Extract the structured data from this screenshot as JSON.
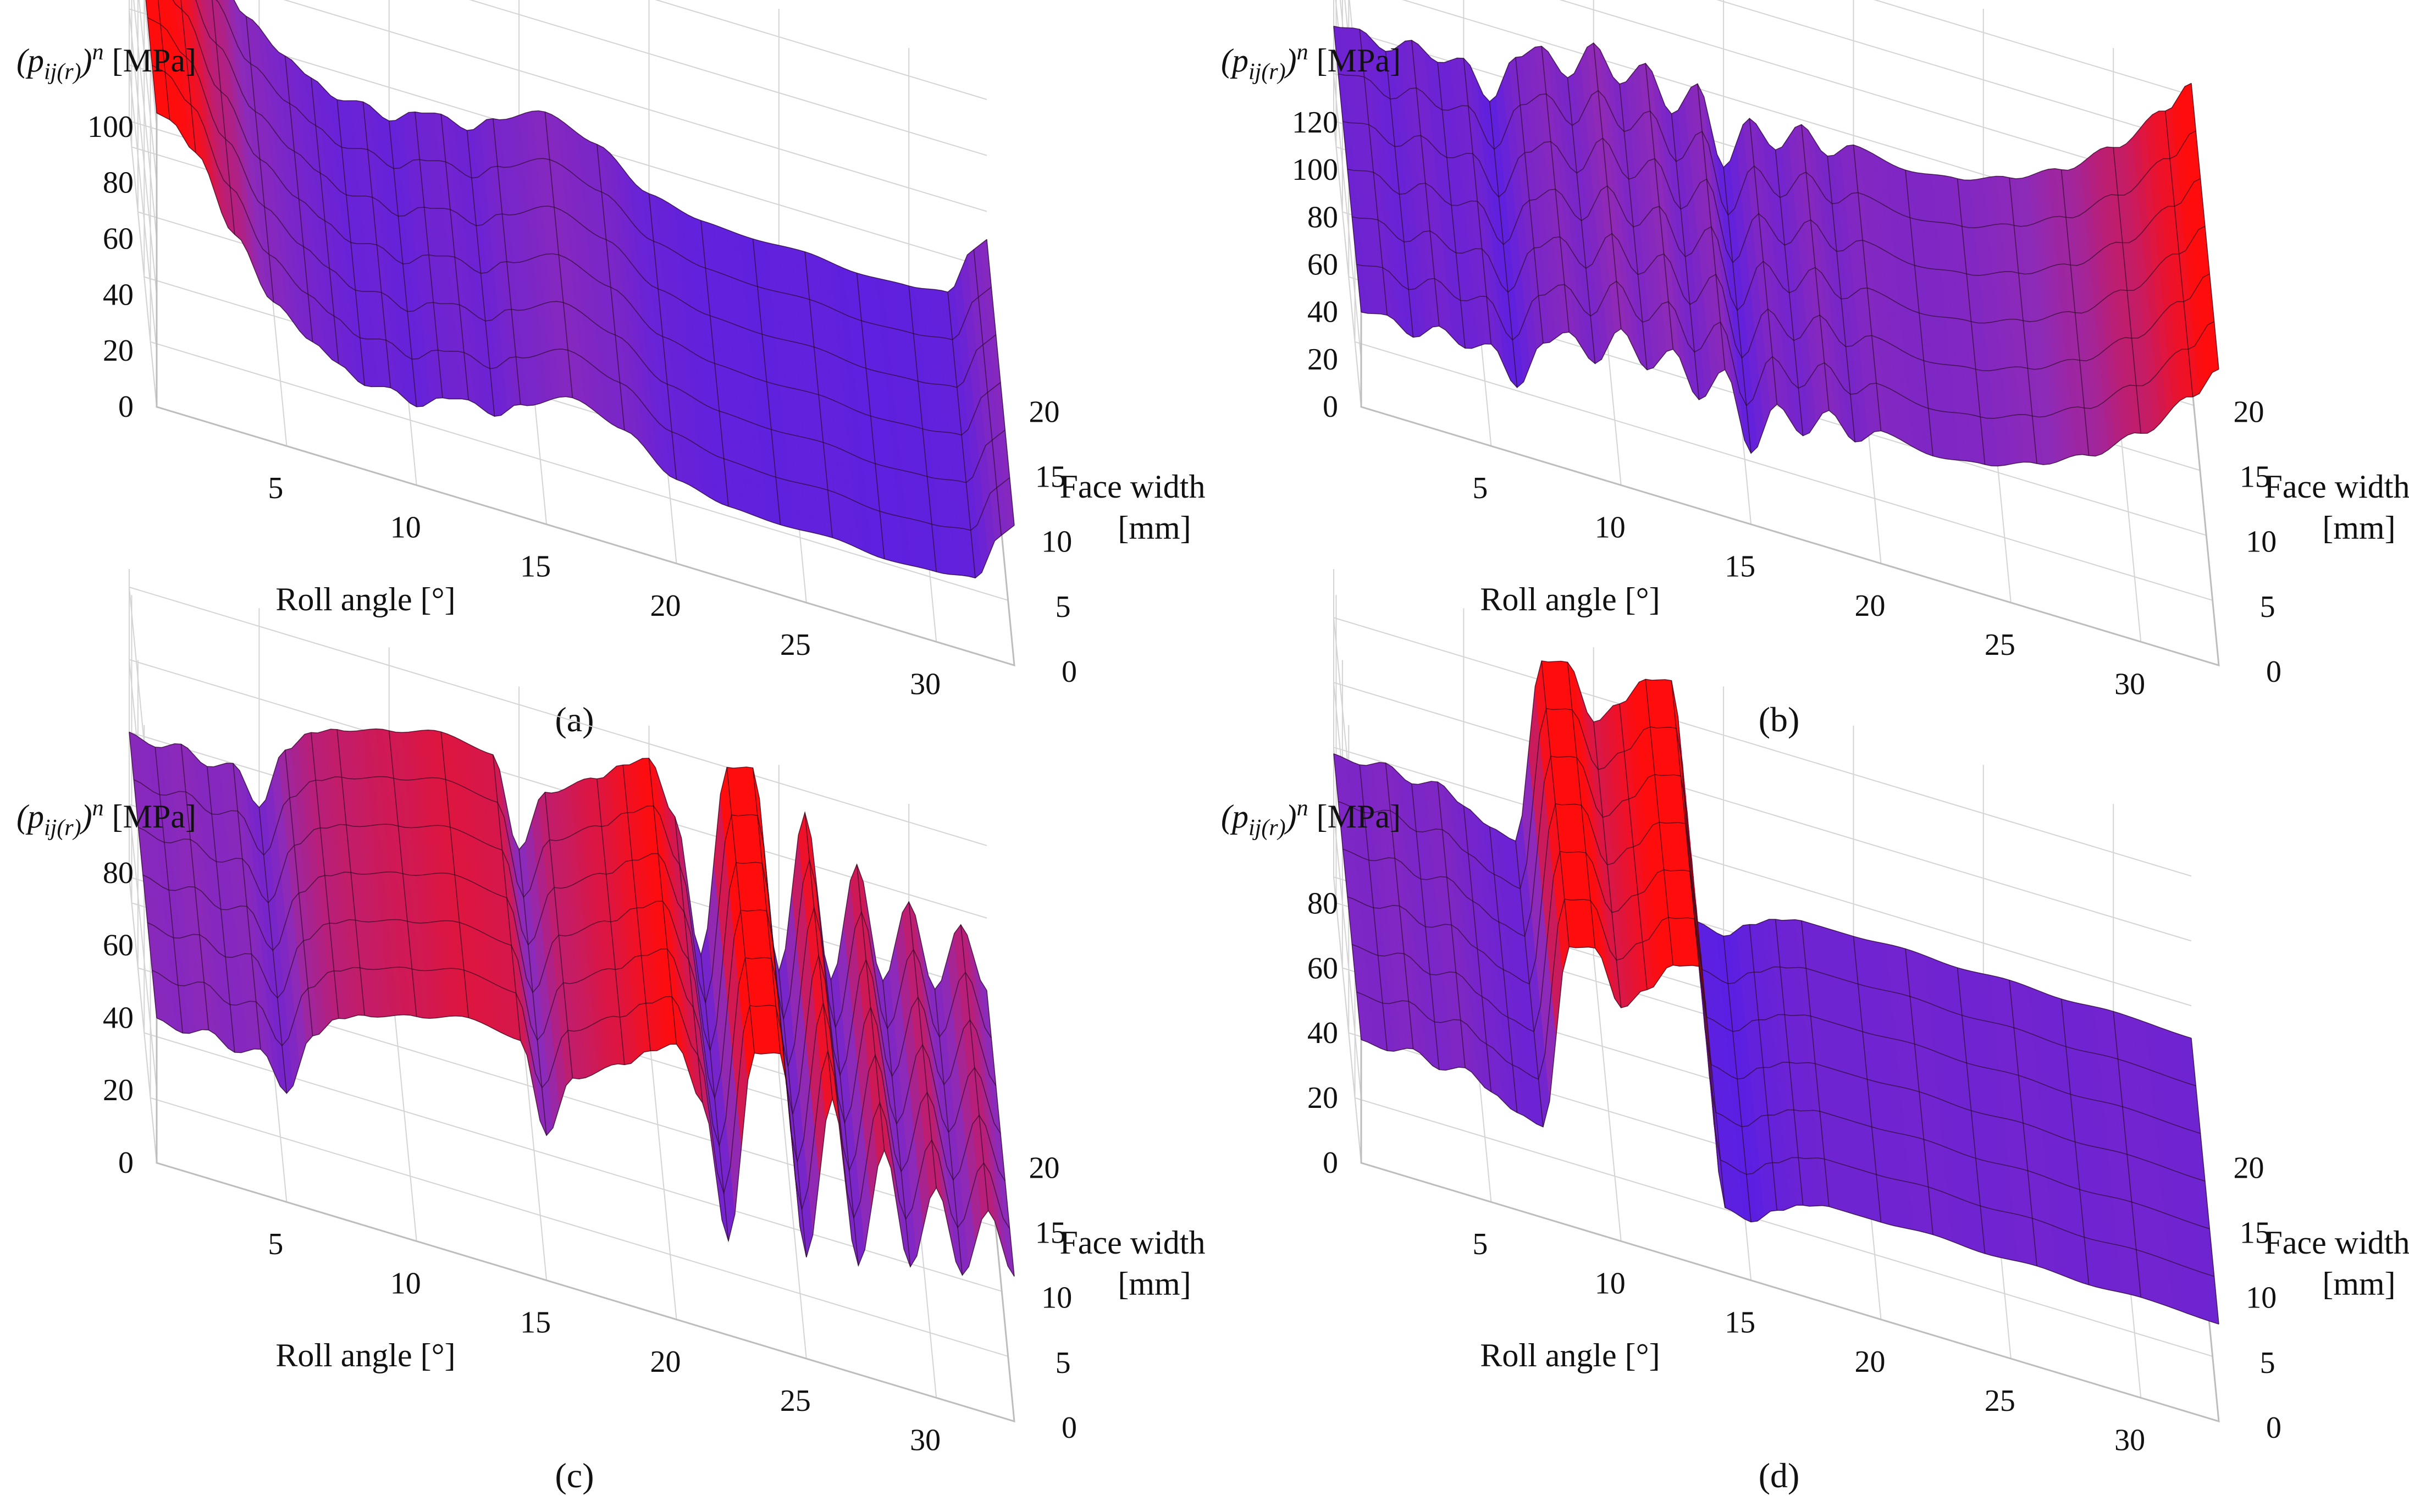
{
  "chart_data": [
    {
      "type": "surface",
      "caption": "(a)",
      "zlabel_parts": {
        "open": "(p",
        "sub": "ij(r)",
        "close": ")",
        "sup": "n",
        "unit": " [MPa]"
      },
      "xlabel": "Roll angle [°]",
      "ylabel_line1": "Face width",
      "ylabel_line2": "[mm]",
      "xticks": [
        "5",
        "10",
        "15",
        "20",
        "25",
        "30"
      ],
      "yticks": [
        "0",
        "5",
        "10",
        "15",
        "20"
      ],
      "zticks": [
        "0",
        "20",
        "40",
        "60",
        "80",
        "100"
      ],
      "xlim": [
        0,
        33
      ],
      "ylim": [
        0,
        22
      ],
      "zlim": [
        0,
        110
      ],
      "profile_x": [
        0,
        0.5,
        1.5,
        3,
        4.5,
        6,
        7,
        8,
        9,
        10,
        11,
        12,
        13,
        14,
        16,
        18,
        20,
        22,
        24,
        26,
        28,
        30,
        31.5,
        32.5,
        33
      ],
      "profile_z": [
        105,
        104,
        95,
        70,
        50,
        40,
        35,
        30,
        32,
        28,
        34,
        36,
        33,
        40,
        48,
        42,
        30,
        26,
        25,
        26,
        24,
        25,
        27,
        45,
        50
      ]
    },
    {
      "type": "surface",
      "caption": "(b)",
      "zlabel_parts": {
        "open": "(p",
        "sub": "ij(r)",
        "close": ")",
        "sup": "n",
        "unit": " [MPa]"
      },
      "xlabel": "Roll angle [°]",
      "ylabel_line1": "Face width",
      "ylabel_line2": "[mm]",
      "xticks": [
        "5",
        "10",
        "15",
        "20",
        "25",
        "30"
      ],
      "yticks": [
        "0",
        "5",
        "10",
        "15",
        "20"
      ],
      "zticks": [
        "0",
        "20",
        "40",
        "60",
        "80",
        "100",
        "120"
      ],
      "xlim": [
        0,
        33
      ],
      "ylim": [
        0,
        22
      ],
      "zlim": [
        0,
        130
      ],
      "profile_x": [
        0,
        1,
        2,
        3,
        4,
        5,
        6,
        7,
        8,
        9,
        10,
        11,
        12,
        13,
        14,
        15,
        16,
        17,
        18,
        19,
        20,
        22,
        24,
        26,
        28,
        30,
        32,
        33
      ],
      "profile_z": [
        40,
        42,
        36,
        44,
        38,
        43,
        28,
        50,
        58,
        48,
        66,
        52,
        64,
        46,
        62,
        30,
        54,
        44,
        58,
        48,
        56,
        52,
        55,
        62,
        72,
        88,
        110,
        125
      ]
    },
    {
      "type": "surface",
      "caption": "(c)",
      "zlabel_parts": {
        "open": "(p",
        "sub": "ij(r)",
        "close": ")",
        "sup": "n",
        "unit": " [MPa]"
      },
      "xlabel": "Roll angle [°]",
      "ylabel_line1": "Face width",
      "ylabel_line2": "[mm]",
      "xticks": [
        "5",
        "10",
        "15",
        "20",
        "25",
        "30"
      ],
      "yticks": [
        "0",
        "5",
        "10",
        "15",
        "20"
      ],
      "zticks": [
        "0",
        "20",
        "40",
        "60",
        "80"
      ],
      "xlim": [
        0,
        33
      ],
      "ylim": [
        0,
        22
      ],
      "zlim": [
        0,
        85
      ],
      "profile_x": [
        0,
        1,
        2,
        3,
        4,
        5,
        6,
        7,
        8,
        10,
        12,
        14,
        15,
        16,
        18,
        19,
        20,
        21,
        22,
        23,
        24,
        25,
        26,
        27,
        28,
        29,
        30,
        31,
        32,
        33
      ],
      "profile_z": [
        40,
        38,
        41,
        37,
        40,
        30,
        48,
        55,
        58,
        62,
        66,
        64,
        40,
        58,
        66,
        72,
        76,
        62,
        26,
        80,
        82,
        28,
        74,
        30,
        64,
        34,
        58,
        36,
        56,
        40
      ]
    },
    {
      "type": "surface",
      "caption": "(d)",
      "zlabel_parts": {
        "open": "(p",
        "sub": "ij(r)",
        "close": ")",
        "sup": "n",
        "unit": " [MPa]"
      },
      "xlabel": "Roll angle [°]",
      "ylabel_line1": "Face width",
      "ylabel_line2": "[mm]",
      "xticks": [
        "5",
        "10",
        "15",
        "20",
        "25",
        "30"
      ],
      "yticks": [
        "0",
        "5",
        "10",
        "15",
        "20"
      ],
      "zticks": [
        "0",
        "20",
        "40",
        "60",
        "80"
      ],
      "xlim": [
        0,
        33
      ],
      "ylim": [
        0,
        22
      ],
      "zlim": [
        0,
        95
      ],
      "profile_x": [
        0,
        1,
        2,
        3,
        4,
        5,
        6,
        7,
        8,
        9,
        10,
        11,
        12,
        13,
        14,
        15,
        16,
        17,
        18,
        20,
        22,
        24,
        26,
        28,
        30,
        33
      ],
      "profile_z": [
        38,
        37,
        40,
        36,
        39,
        34,
        30,
        28,
        86,
        88,
        72,
        80,
        90,
        92,
        20,
        18,
        24,
        28,
        30,
        30,
        31,
        30,
        31,
        30,
        31,
        30
      ]
    }
  ],
  "colors": {
    "low": "#4a1cf0",
    "mid": "#8e2ab8",
    "high": "#ff0d0d",
    "grid": "#d4d4d4",
    "text": "#111111"
  }
}
